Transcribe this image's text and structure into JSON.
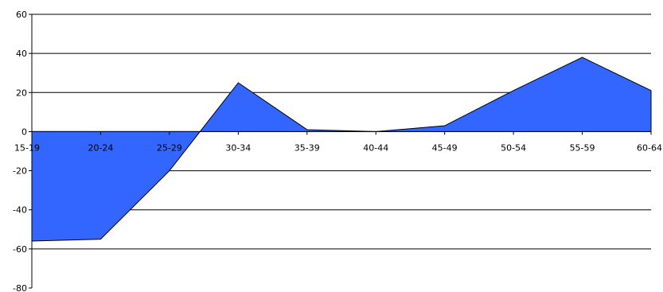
{
  "chart_data": {
    "type": "area",
    "title": "",
    "xlabel": "",
    "ylabel": "",
    "categories": [
      "15-19",
      "20-24",
      "25-29",
      "30-34",
      "35-39",
      "40-44",
      "45-49",
      "50-54",
      "55-59",
      "60-64"
    ],
    "series": [
      {
        "values": [
          -56,
          -55,
          -20,
          25,
          1,
          0,
          3,
          21,
          38,
          21
        ]
      }
    ],
    "y_ticks": [
      "-80",
      "-60",
      "-40",
      "-20",
      "0",
      "20",
      "40",
      "60"
    ],
    "ylim": [
      -80,
      60
    ],
    "grid": "horizontal",
    "legend": "none",
    "colors": {
      "fill": "#3366ff",
      "stroke": "#000000",
      "grid": "#000000"
    }
  }
}
